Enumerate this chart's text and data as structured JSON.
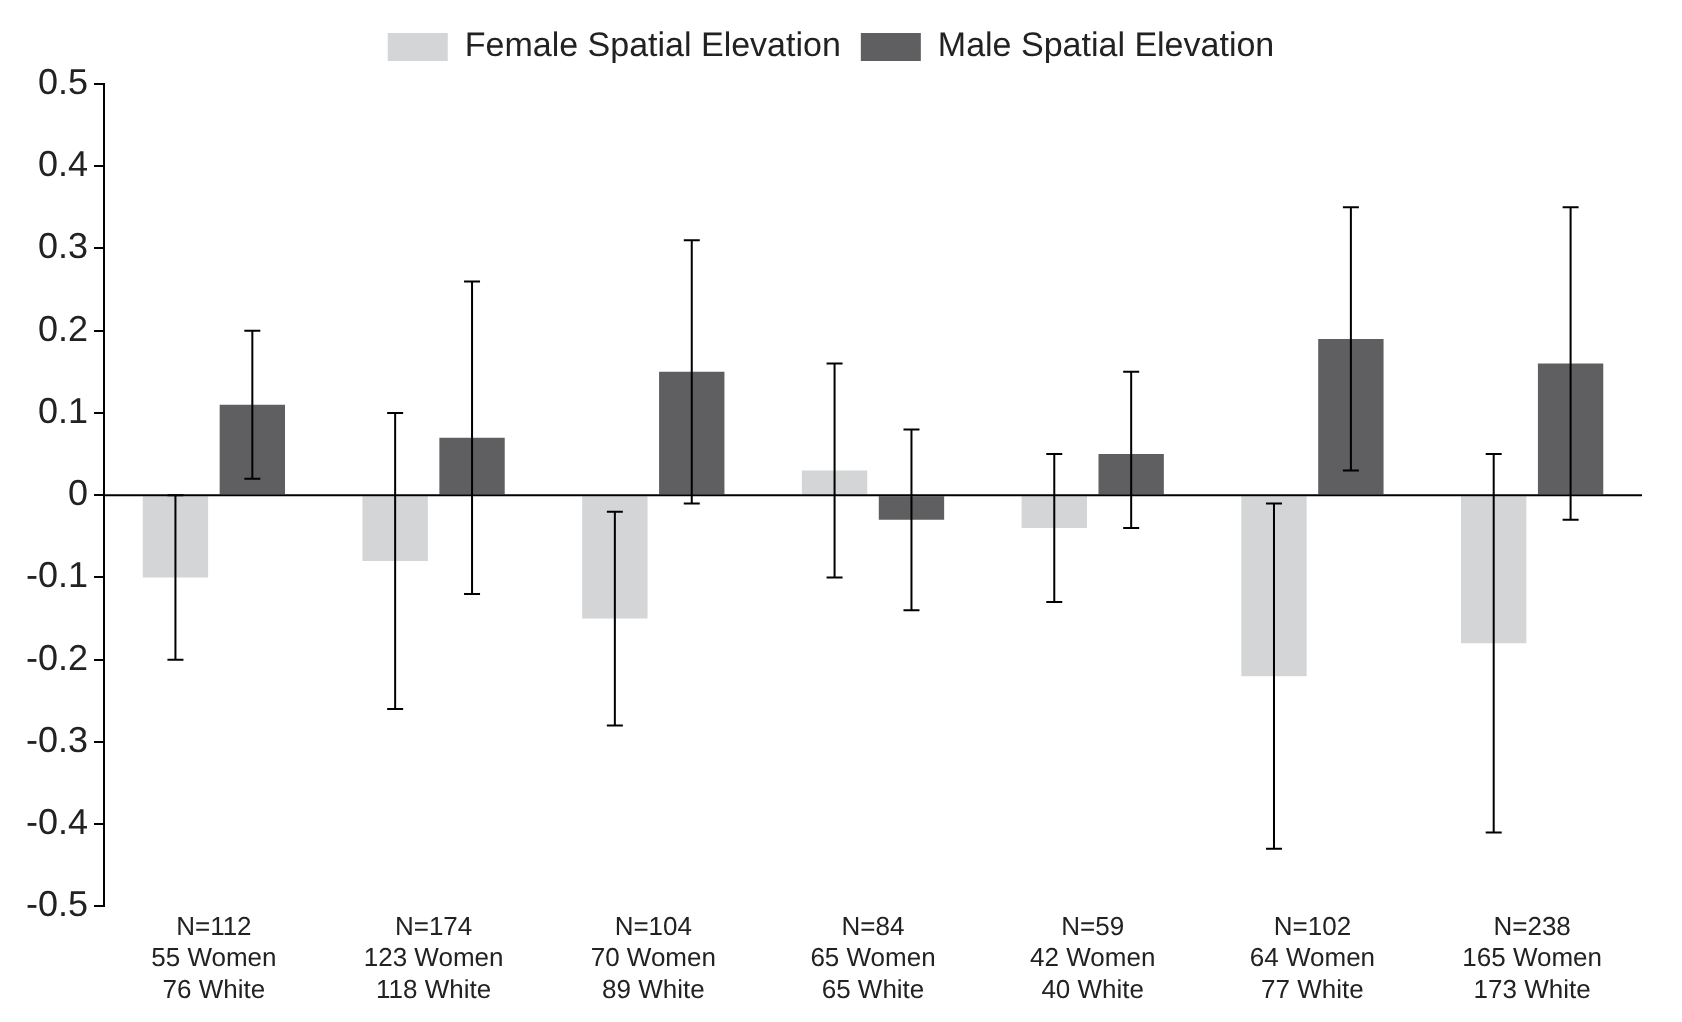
{
  "chart_data": {
    "type": "bar",
    "categories": [
      "N=112\n55 Women\n76 White",
      "N=174\n123 Women\n118 White",
      "N=104\n70 Women\n89 White",
      "N=84\n65 Women\n65 White",
      "N=59\n42 Women\n40 White",
      "N=102\n64 Women\n77 White",
      "N=238\n165 Women\n173 White"
    ],
    "series": [
      {
        "name": "Female Spatial Elevation",
        "color": "#d4d5d6",
        "values": [
          -0.1,
          -0.08,
          -0.15,
          0.03,
          -0.04,
          -0.22,
          -0.18
        ],
        "errors": [
          [
            -0.2,
            0.0
          ],
          [
            -0.26,
            0.1
          ],
          [
            -0.28,
            -0.02
          ],
          [
            -0.1,
            0.16
          ],
          [
            -0.13,
            0.05
          ],
          [
            -0.43,
            -0.01
          ],
          [
            -0.41,
            0.05
          ]
        ]
      },
      {
        "name": "Male Spatial Elevation",
        "color": "#5f5f61",
        "values": [
          0.11,
          0.07,
          0.15,
          -0.03,
          0.05,
          0.19,
          0.16
        ],
        "errors": [
          [
            0.02,
            0.2
          ],
          [
            -0.12,
            0.26
          ],
          [
            -0.01,
            0.31
          ],
          [
            -0.14,
            0.08
          ],
          [
            -0.04,
            0.15
          ],
          [
            0.03,
            0.35
          ],
          [
            -0.03,
            0.35
          ]
        ]
      }
    ],
    "ylim": [
      -0.5,
      0.5
    ],
    "yticks": [
      -0.5,
      -0.4,
      -0.3,
      -0.2,
      -0.1,
      0,
      0.1,
      0.2,
      0.3,
      0.4,
      0.5
    ],
    "ref_lines": [
      {
        "axis": "y",
        "value": 0,
        "color": "#000000"
      }
    ],
    "grid": false,
    "legend": "top"
  }
}
